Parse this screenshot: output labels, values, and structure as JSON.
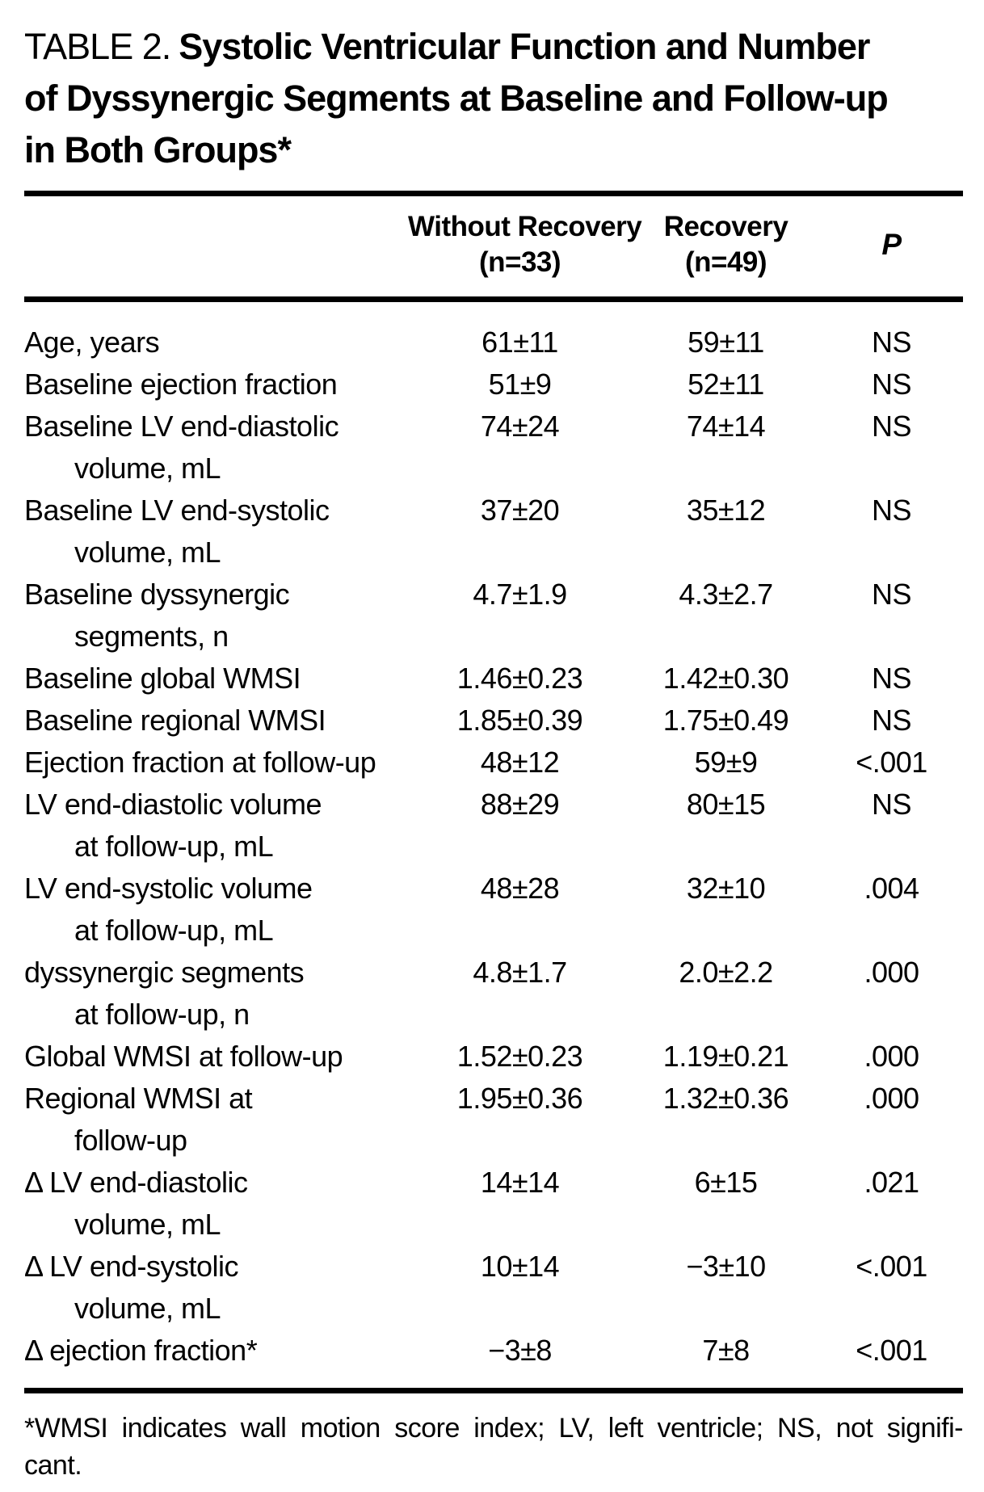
{
  "title": {
    "prefix": "TABLE 2.",
    "line1": "Systolic Ventricular Function and Number",
    "line2": "of Dyssynergic Segments at Baseline and Follow-up",
    "line3": "in Both Groups*"
  },
  "columns": [
    {
      "line1": "Without Recovery",
      "line2": "(n=33)"
    },
    {
      "line1": "Recovery",
      "line2": "(n=49)"
    },
    {
      "label": "P"
    }
  ],
  "rows": [
    {
      "label": "Age, years",
      "label2": "",
      "without_recovery": "61±11",
      "recovery": "59±11",
      "p": "NS"
    },
    {
      "label": "Baseline ejection fraction",
      "label2": "",
      "without_recovery": "51±9",
      "recovery": "52±11",
      "p": "NS"
    },
    {
      "label": "Baseline LV end-diastolic",
      "label2": "volume, mL",
      "without_recovery": "74±24",
      "recovery": "74±14",
      "p": "NS"
    },
    {
      "label": "Baseline LV end-systolic",
      "label2": "volume, mL",
      "without_recovery": "37±20",
      "recovery": "35±12",
      "p": "NS"
    },
    {
      "label": "Baseline dyssynergic",
      "label2": "segments, n",
      "without_recovery": "4.7±1.9",
      "recovery": "4.3±2.7",
      "p": "NS"
    },
    {
      "label": "Baseline global WMSI",
      "label2": "",
      "without_recovery": "1.46±0.23",
      "recovery": "1.42±0.30",
      "p": "NS"
    },
    {
      "label": "Baseline regional WMSI",
      "label2": "",
      "without_recovery": "1.85±0.39",
      "recovery": "1.75±0.49",
      "p": "NS"
    },
    {
      "label": "Ejection fraction at follow-up",
      "label2": "",
      "without_recovery": "48±12",
      "recovery": "59±9",
      "p": "<.001"
    },
    {
      "label": "LV end-diastolic volume",
      "label2": "at follow-up, mL",
      "without_recovery": "88±29",
      "recovery": "80±15",
      "p": "NS"
    },
    {
      "label": "LV end-systolic volume",
      "label2": "at follow-up, mL",
      "without_recovery": "48±28",
      "recovery": "32±10",
      "p": ".004"
    },
    {
      "label": "dyssynergic segments",
      "label2": "at follow-up, n",
      "without_recovery": "4.8±1.7",
      "recovery": "2.0±2.2",
      "p": ".000"
    },
    {
      "label": "Global WMSI at follow-up",
      "label2": "",
      "without_recovery": "1.52±0.23",
      "recovery": "1.19±0.21",
      "p": ".000"
    },
    {
      "label": "Regional WMSI at",
      "label2": "follow-up",
      "without_recovery": "1.95±0.36",
      "recovery": "1.32±0.36",
      "p": ".000"
    },
    {
      "label": "Δ LV end-diastolic",
      "label2": "volume, mL",
      "without_recovery": "14±14",
      "recovery": "6±15",
      "p": ".021"
    },
    {
      "label": "Δ LV end-systolic",
      "label2": "volume, mL",
      "without_recovery": "10±14",
      "recovery": "−3±10",
      "p": "<.001"
    },
    {
      "label": "Δ ejection fraction*",
      "label2": "",
      "without_recovery": "−3±8",
      "recovery": "7±8",
      "p": "<.001"
    }
  ],
  "footnote": {
    "line1": "*WMSI indicates wall motion score index; LV, left ventricle; NS, not signifi-",
    "line2": "cant."
  },
  "colors": {
    "background": "#ffffff",
    "text": "#000000",
    "rule": "#000000"
  }
}
